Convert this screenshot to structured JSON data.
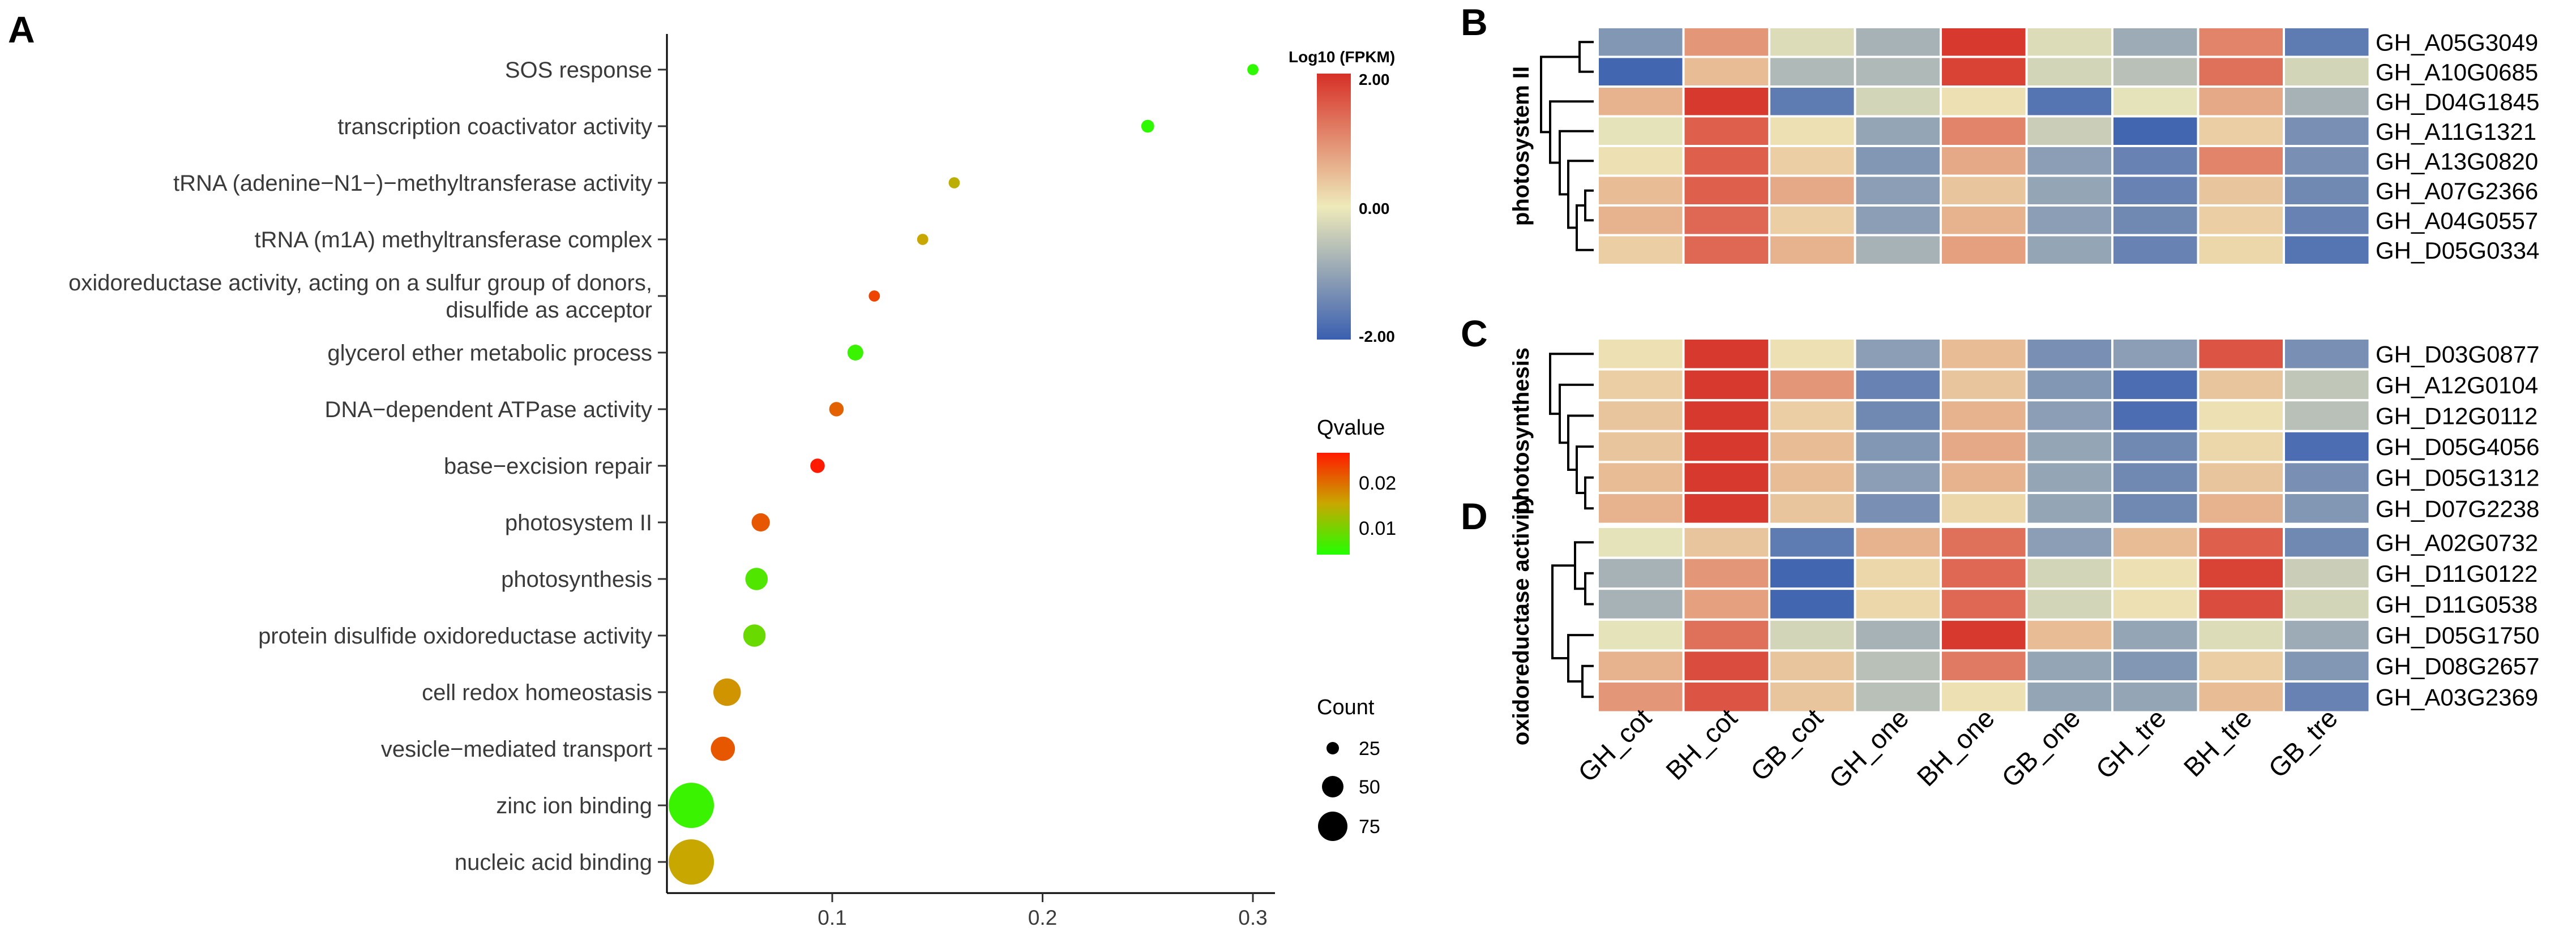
{
  "panel_letters": {
    "a": "A",
    "b": "B",
    "c": "C",
    "d": "D"
  },
  "fpkm_legend": {
    "title": "Log10 (FPKM)",
    "max_label": "2.00",
    "mid_label": "0.00",
    "min_label": "-2.00",
    "colors": [
      "#3a5fb0",
      "#eeeaba",
      "#d73027"
    ]
  },
  "qvalue_legend": {
    "title": "Qvalue",
    "labels": [
      "0.02",
      "0.01"
    ],
    "colors": [
      "#ff1a00",
      "#c8a800",
      "#22ff00"
    ]
  },
  "count_legend": {
    "title": "Count",
    "labels": [
      "25",
      "50",
      "75"
    ],
    "values": [
      25,
      50,
      75
    ]
  },
  "chart_data": [
    {
      "type": "scatter",
      "title": "",
      "xlabel": "",
      "ylabel": "",
      "xlim": [
        0.01,
        0.32
      ],
      "xticks": [
        0.1,
        0.2,
        0.3
      ],
      "xtick_labels": [
        "0.1",
        "0.2",
        "0.3"
      ],
      "terms": [
        {
          "label": "SOS response",
          "x": 0.3,
          "count": 3,
          "qvalue": 0.001
        },
        {
          "label": "transcription coactivator activity",
          "x": 0.25,
          "count": 4,
          "qvalue": 0.001
        },
        {
          "label": "tRNA (adenine−N1−)−methyltransferase activity",
          "x": 0.158,
          "count": 3,
          "qvalue": 0.013
        },
        {
          "label": "tRNA (m1A) methyltransferase complex",
          "x": 0.143,
          "count": 3,
          "qvalue": 0.014
        },
        {
          "label_lines": [
            "oxidoreductase activity, acting on a sulfur group of donors,",
            "disulfide as acceptor"
          ],
          "x": 0.12,
          "count": 3,
          "qvalue": 0.024
        },
        {
          "label": "glycerol ether metabolic process",
          "x": 0.111,
          "count": 6,
          "qvalue": 0.002
        },
        {
          "label": "DNA−dependent ATPase activity",
          "x": 0.102,
          "count": 5,
          "qvalue": 0.021
        },
        {
          "label": "base−excision repair",
          "x": 0.093,
          "count": 5,
          "qvalue": 0.028
        },
        {
          "label": "photosystem II",
          "x": 0.066,
          "count": 8,
          "qvalue": 0.022
        },
        {
          "label": "photosynthesis",
          "x": 0.064,
          "count": 12,
          "qvalue": 0.004
        },
        {
          "label": "protein disulfide oxidoreductase activity",
          "x": 0.063,
          "count": 12,
          "qvalue": 0.006
        },
        {
          "label": "cell redox homeostasis",
          "x": 0.05,
          "count": 18,
          "qvalue": 0.016
        },
        {
          "label": "vesicle−mediated transport",
          "x": 0.048,
          "count": 14,
          "qvalue": 0.022
        },
        {
          "label": "zinc ion binding",
          "x": 0.033,
          "count": 80,
          "qvalue": 0.002
        },
        {
          "label": "nucleic acid binding",
          "x": 0.033,
          "count": 55,
          "qvalue": 0.014
        }
      ]
    },
    {
      "type": "heatmap",
      "panel": "B",
      "group_label": "photosystem II",
      "columns": [
        "GH_cot",
        "BH_cot",
        "GB_cot",
        "GH_one",
        "BH_one",
        "GB_one",
        "GH_tre",
        "BH_tre",
        "GB_tre"
      ],
      "rows": [
        "GH_A05G3049",
        "GH_A10G0685",
        "GH_D04G1845",
        "GH_A11G1321",
        "GH_A13G0820",
        "GH_A07G2366",
        "GH_A04G0557",
        "GH_D05G0334"
      ],
      "values": [
        [
          -1.2,
          0.9,
          -0.2,
          -0.8,
          1.9,
          -0.2,
          -0.9,
          1.1,
          -1.6
        ],
        [
          -1.9,
          0.5,
          -0.7,
          -0.7,
          1.8,
          -0.3,
          -0.6,
          1.3,
          -0.3
        ],
        [
          0.6,
          1.9,
          -1.6,
          -0.3,
          0.1,
          -1.7,
          -0.1,
          0.7,
          -0.8
        ],
        [
          -0.1,
          1.5,
          0.1,
          -1.0,
          1.1,
          -0.4,
          -1.9,
          0.3,
          -1.3
        ],
        [
          0.1,
          1.5,
          0.3,
          -1.2,
          0.7,
          -1.1,
          -1.5,
          1.1,
          -1.3
        ],
        [
          0.5,
          1.5,
          0.7,
          -1.1,
          0.4,
          -1.0,
          -1.5,
          0.4,
          -1.4
        ],
        [
          0.6,
          1.4,
          0.3,
          -1.1,
          0.6,
          -1.1,
          -1.4,
          0.3,
          -1.5
        ],
        [
          0.3,
          1.4,
          0.6,
          -0.8,
          0.8,
          -1.0,
          -1.5,
          0.2,
          -1.7
        ]
      ]
    },
    {
      "type": "heatmap",
      "panel": "C",
      "group_label": "photosynthesis",
      "columns": [
        "GH_cot",
        "BH_cot",
        "GB_cot",
        "GH_one",
        "BH_one",
        "GB_one",
        "GH_tre",
        "BH_tre",
        "GB_tre"
      ],
      "rows": [
        "GH_D03G0877",
        "GH_A12G0104",
        "GH_D12G0112",
        "GH_D05G4056",
        "GH_D05G1312",
        "GH_D07G2238"
      ],
      "values": [
        [
          0.1,
          1.9,
          0.1,
          -1.1,
          0.5,
          -1.3,
          -1.1,
          1.6,
          -1.3
        ],
        [
          0.3,
          1.9,
          0.9,
          -1.5,
          0.4,
          -1.2,
          -1.8,
          0.4,
          -0.5
        ],
        [
          0.4,
          1.9,
          0.3,
          -1.4,
          0.6,
          -1.1,
          -1.8,
          0.1,
          -0.6
        ],
        [
          0.4,
          1.9,
          0.5,
          -1.2,
          0.7,
          -1.0,
          -1.4,
          0.2,
          -1.8
        ],
        [
          0.5,
          1.9,
          0.5,
          -1.1,
          0.6,
          -1.0,
          -1.4,
          0.4,
          -1.3
        ],
        [
          0.6,
          1.9,
          0.4,
          -1.3,
          0.2,
          -1.0,
          -1.4,
          0.6,
          -1.2
        ]
      ]
    },
    {
      "type": "heatmap",
      "panel": "D",
      "group_label": "oxidoreductase activity",
      "columns": [
        "GH_cot",
        "BH_cot",
        "GB_cot",
        "GH_one",
        "BH_one",
        "GB_one",
        "GH_tre",
        "BH_tre",
        "GB_tre"
      ],
      "rows": [
        "GH_A02G0732",
        "GH_D11G0122",
        "GH_D11G0538",
        "GH_D05G1750",
        "GH_D08G2657",
        "GH_A03G2369"
      ],
      "values": [
        [
          -0.1,
          0.4,
          -1.6,
          0.6,
          1.3,
          -1.1,
          0.5,
          1.5,
          -1.4
        ],
        [
          -0.8,
          0.9,
          -1.9,
          0.2,
          1.4,
          -0.3,
          0.1,
          1.8,
          -0.4
        ],
        [
          -0.8,
          0.8,
          -1.9,
          0.2,
          1.4,
          -0.3,
          0.1,
          1.7,
          -0.3
        ],
        [
          -0.1,
          1.3,
          -0.3,
          -0.8,
          1.9,
          0.5,
          -1.0,
          -0.2,
          -0.9
        ],
        [
          0.6,
          1.7,
          0.4,
          -0.6,
          1.2,
          -1.0,
          -1.2,
          0.3,
          -1.2
        ],
        [
          0.9,
          1.6,
          0.4,
          -0.6,
          0.1,
          -1.0,
          -1.0,
          0.5,
          -1.5
        ]
      ]
    }
  ]
}
